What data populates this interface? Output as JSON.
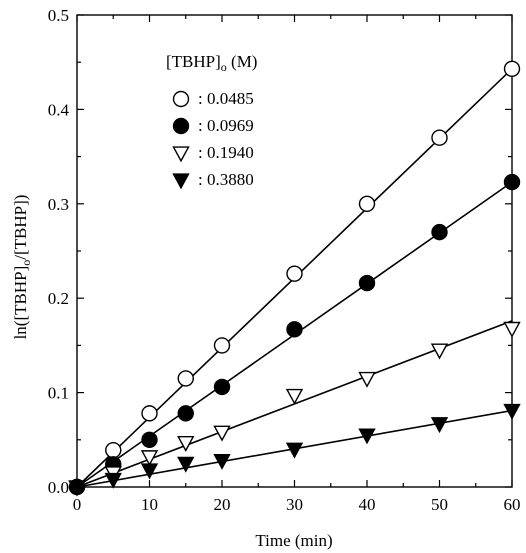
{
  "chart_data": {
    "type": "scatter",
    "xlabel": "Time (min)",
    "ylabel": "ln([TBHP]o/[TBHP])",
    "xlim": [
      0,
      60
    ],
    "ylim": [
      0,
      0.5
    ],
    "xticks": [
      "0",
      "10",
      "20",
      "30",
      "40",
      "50",
      "60"
    ],
    "yticks": [
      "0.0",
      "0.1",
      "0.2",
      "0.3",
      "0.4",
      "0.5"
    ],
    "grid": false,
    "legend": {
      "title": "[TBHP]o (M)",
      "placement": "top-left"
    },
    "series": [
      {
        "name": ": 0.0485",
        "marker": "circle-open",
        "x": [
          0,
          5,
          10,
          15,
          20,
          30,
          40,
          50,
          60
        ],
        "y": [
          0,
          0.039,
          0.078,
          0.115,
          0.15,
          0.226,
          0.3,
          0.37,
          0.443
        ],
        "fit": [
          [
            0,
            0
          ],
          [
            60,
            0.443
          ]
        ]
      },
      {
        "name": ": 0.0969",
        "marker": "circle-filled",
        "x": [
          0,
          5,
          10,
          15,
          20,
          30,
          40,
          50,
          60
        ],
        "y": [
          0,
          0.024,
          0.05,
          0.078,
          0.106,
          0.167,
          0.216,
          0.27,
          0.323
        ],
        "fit": [
          [
            0,
            0
          ],
          [
            60,
            0.323
          ]
        ]
      },
      {
        "name": ": 0.1940",
        "marker": "triangle-down-open",
        "x": [
          0,
          5,
          10,
          15,
          20,
          30,
          40,
          50,
          60
        ],
        "y": [
          0,
          0.015,
          0.032,
          0.047,
          0.058,
          0.097,
          0.115,
          0.145,
          0.168
        ],
        "fit": [
          [
            0,
            0
          ],
          [
            60,
            0.176
          ]
        ]
      },
      {
        "name": ": 0.3880",
        "marker": "triangle-down-filled",
        "x": [
          0,
          5,
          10,
          15,
          20,
          30,
          40,
          50,
          60
        ],
        "y": [
          0,
          0.008,
          0.018,
          0.025,
          0.028,
          0.04,
          0.055,
          0.067,
          0.081
        ],
        "fit": [
          [
            0,
            0
          ],
          [
            60,
            0.081
          ]
        ]
      }
    ]
  }
}
